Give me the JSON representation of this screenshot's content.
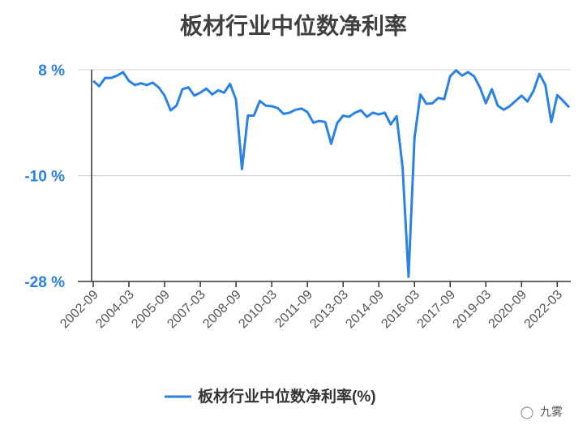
{
  "chart_data": {
    "type": "line",
    "title": "板材行业中位数净利率",
    "categories": [
      "2002-09",
      null,
      null,
      null,
      null,
      null,
      "2004-03",
      null,
      null,
      null,
      null,
      null,
      "2005-09",
      null,
      null,
      null,
      null,
      null,
      "2007-03",
      null,
      null,
      null,
      null,
      null,
      "2008-09",
      null,
      null,
      null,
      null,
      null,
      "2010-03",
      null,
      null,
      null,
      null,
      null,
      "2011-09",
      null,
      null,
      null,
      null,
      null,
      "2013-03",
      null,
      null,
      null,
      null,
      null,
      "2014-09",
      null,
      null,
      null,
      null,
      null,
      "2016-03",
      null,
      null,
      null,
      null,
      null,
      "2017-09",
      null,
      null,
      null,
      null,
      null,
      "2019-03",
      null,
      null,
      null,
      null,
      null,
      "2020-09",
      null,
      null,
      null,
      null,
      null,
      "2022-03",
      null,
      null
    ],
    "series": [
      {
        "name": "板材行业中位数净利率(%)",
        "color": "#2a82e4",
        "values": [
          6.1,
          5.2,
          6.6,
          6.6,
          7.0,
          7.6,
          6.1,
          5.4,
          5.7,
          5.4,
          5.8,
          5.0,
          3.6,
          1.1,
          1.9,
          4.7,
          5.0,
          3.6,
          4.1,
          4.8,
          3.8,
          4.5,
          4.1,
          5.6,
          2.9,
          -8.9,
          0.2,
          0.2,
          2.7,
          1.9,
          1.8,
          1.5,
          0.5,
          0.7,
          1.2,
          1.4,
          0.8,
          -1.0,
          -0.7,
          -0.9,
          -4.6,
          -1.1,
          0.2,
          0.0,
          0.7,
          1.1,
          0.0,
          0.7,
          0.4,
          0.7,
          -1.3,
          0.1,
          -8.6,
          -27.2,
          -3.6,
          3.8,
          2.2,
          2.3,
          3.2,
          3.0,
          6.9,
          7.9,
          7.0,
          7.6,
          6.9,
          5.0,
          2.3,
          4.7,
          1.9,
          1.2,
          1.8,
          2.7,
          3.6,
          2.6,
          4.4,
          7.3,
          5.4,
          -0.9,
          3.7,
          2.7,
          1.6
        ]
      }
    ],
    "ylim": [
      -28,
      8
    ],
    "yticks": [
      {
        "value": -28,
        "label": "-28 %"
      },
      {
        "value": -10,
        "label": "-10 %"
      },
      {
        "value": 8,
        "label": "8 %"
      }
    ],
    "grid": true,
    "legend": "bottom",
    "watermark": "九雾"
  }
}
